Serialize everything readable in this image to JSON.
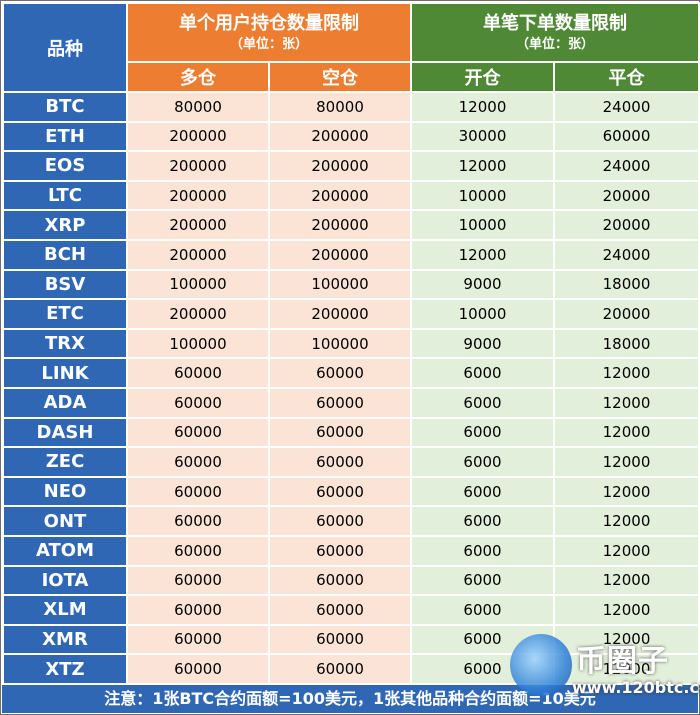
{
  "header": {
    "variety": "品种",
    "position_limit_title": "单个用户持仓数量限制",
    "position_limit_unit": "（单位：张）",
    "order_limit_title": "单笔下单数量限制",
    "order_limit_unit": "（单位：张）",
    "long": "多仓",
    "short": "空仓",
    "open": "开仓",
    "close": "平仓"
  },
  "rows": [
    {
      "symbol": "BTC",
      "long": "80000",
      "short": "80000",
      "open": "12000",
      "close": "24000"
    },
    {
      "symbol": "ETH",
      "long": "200000",
      "short": "200000",
      "open": "30000",
      "close": "60000"
    },
    {
      "symbol": "EOS",
      "long": "200000",
      "short": "200000",
      "open": "12000",
      "close": "24000"
    },
    {
      "symbol": "LTC",
      "long": "200000",
      "short": "200000",
      "open": "10000",
      "close": "20000"
    },
    {
      "symbol": "XRP",
      "long": "200000",
      "short": "200000",
      "open": "10000",
      "close": "20000"
    },
    {
      "symbol": "BCH",
      "long": "200000",
      "short": "200000",
      "open": "12000",
      "close": "24000"
    },
    {
      "symbol": "BSV",
      "long": "100000",
      "short": "100000",
      "open": "9000",
      "close": "18000"
    },
    {
      "symbol": "ETC",
      "long": "200000",
      "short": "200000",
      "open": "10000",
      "close": "20000"
    },
    {
      "symbol": "TRX",
      "long": "100000",
      "short": "100000",
      "open": "9000",
      "close": "18000"
    },
    {
      "symbol": "LINK",
      "long": "60000",
      "short": "60000",
      "open": "6000",
      "close": "12000"
    },
    {
      "symbol": "ADA",
      "long": "60000",
      "short": "60000",
      "open": "6000",
      "close": "12000"
    },
    {
      "symbol": "DASH",
      "long": "60000",
      "short": "60000",
      "open": "6000",
      "close": "12000"
    },
    {
      "symbol": "ZEC",
      "long": "60000",
      "short": "60000",
      "open": "6000",
      "close": "12000"
    },
    {
      "symbol": "NEO",
      "long": "60000",
      "short": "60000",
      "open": "6000",
      "close": "12000"
    },
    {
      "symbol": "ONT",
      "long": "60000",
      "short": "60000",
      "open": "6000",
      "close": "12000"
    },
    {
      "symbol": "ATOM",
      "long": "60000",
      "short": "60000",
      "open": "6000",
      "close": "12000"
    },
    {
      "symbol": "IOTA",
      "long": "60000",
      "short": "60000",
      "open": "6000",
      "close": "12000"
    },
    {
      "symbol": "XLM",
      "long": "60000",
      "short": "60000",
      "open": "6000",
      "close": "12000"
    },
    {
      "symbol": "XMR",
      "long": "60000",
      "short": "60000",
      "open": "6000",
      "close": "12000"
    },
    {
      "symbol": "XTZ",
      "long": "60000",
      "short": "60000",
      "open": "6000",
      "close": "12000"
    }
  ],
  "footer": {
    "note": "注意：1张BTC合约面额=100美元，1张其他品种合约面额=10美元"
  },
  "watermark": {
    "name": "币圈子",
    "url": "www.120btc.com"
  },
  "colors": {
    "blue": "#2f67b4",
    "orange": "#ed7d31",
    "green": "#4f8935",
    "peach": "#fbe4d5",
    "mint": "#e2efda"
  }
}
